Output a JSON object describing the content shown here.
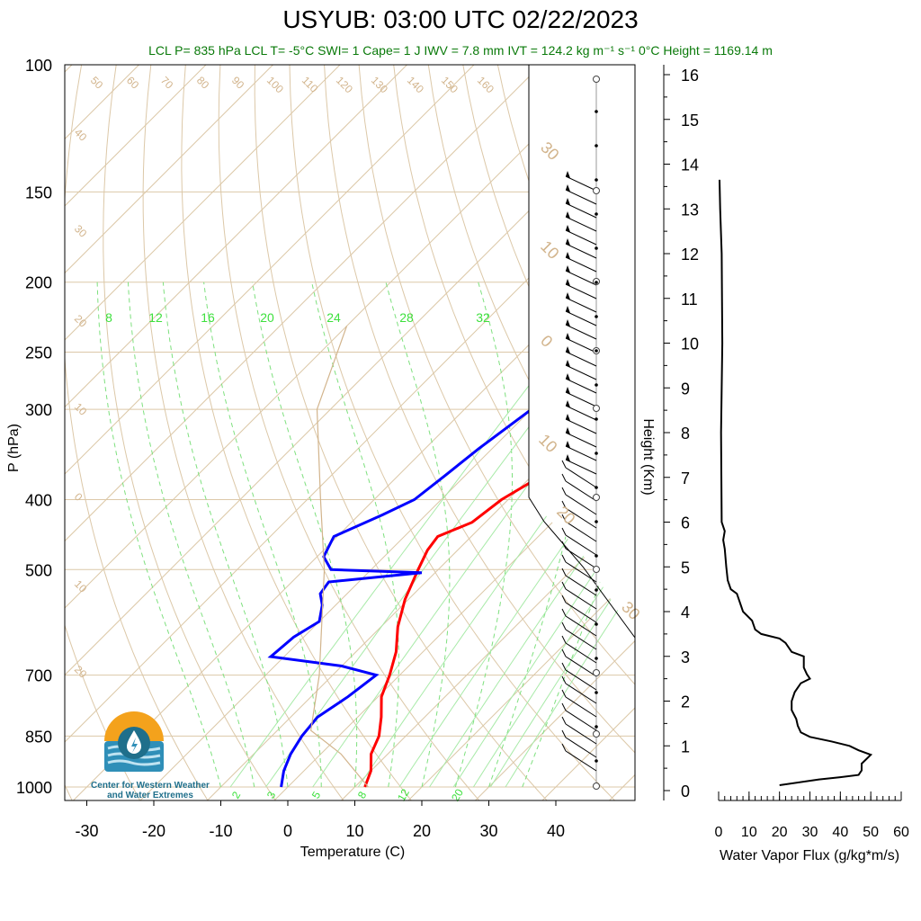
{
  "title": "USYUB: 03:00 UTC 02/22/2023",
  "subtitle": "LCL P= 835 hPa  LCL T= -5°C  SWI= 1  Cape= 1 J  IWV = 7.8 mm  IVT = 124.2 kg m⁻¹ s⁻¹  0°C Height = 1169.14 m",
  "logo": {
    "line1": "Center for Western Weather",
    "line2": "and Water Extremes"
  },
  "chart_data": [
    {
      "type": "line",
      "subtype": "skew-T log-P sounding",
      "xlabel": "Temperature (C)",
      "ylabel": "P (hPa)",
      "xlim": [
        -33,
        52
      ],
      "ylim": [
        1000,
        100
      ],
      "y_scale": "log",
      "x_ticks": [
        "-30",
        "-20",
        "-10",
        "0",
        "10",
        "20",
        "30",
        "40"
      ],
      "y_ticks": [
        "100",
        "150",
        "200",
        "250",
        "300",
        "400",
        "500",
        "700",
        "850",
        "1000"
      ],
      "skew_deg": 45,
      "isotherm_labels": [
        "50",
        "60",
        "70",
        "80",
        "90",
        "100",
        "110",
        "120",
        "130",
        "140",
        "150",
        "160",
        "40",
        "30",
        "20",
        "10",
        "0",
        "10",
        "20",
        "30",
        "10",
        "0",
        "10",
        "20",
        "30"
      ],
      "mixing_ratio_labels": [
        "8",
        "12",
        "16",
        "20",
        "24",
        "28",
        "32"
      ],
      "mixing_ratio_bottom_labels": [
        "2",
        "3",
        "5",
        "8",
        "12",
        "20"
      ],
      "series": [
        {
          "name": "Temperature",
          "color": "#ff0000",
          "points": [
            [
              1000,
              11.5
            ],
            [
              950,
              10.0
            ],
            [
              900,
              7.5
            ],
            [
              850,
              6.0
            ],
            [
              800,
              3.5
            ],
            [
              750,
              0.5
            ],
            [
              700,
              -1.5
            ],
            [
              650,
              -4.0
            ],
            [
              600,
              -7.5
            ],
            [
              550,
              -10.5
            ],
            [
              500,
              -13.0
            ],
            [
              470,
              -14.5
            ],
            [
              450,
              -15.0
            ],
            [
              430,
              -12.0
            ],
            [
              400,
              -11.0
            ],
            [
              370,
              -8.5
            ],
            [
              340,
              -7.5
            ],
            [
              300,
              -7.0
            ],
            [
              270,
              -6.5
            ],
            [
              250,
              -6.0
            ],
            [
              230,
              -5.0
            ],
            [
              210,
              -3.5
            ],
            [
              195,
              -3.5
            ],
            [
              180,
              -2.0
            ],
            [
              165,
              -1.0
            ],
            [
              150,
              -0.5
            ]
          ]
        },
        {
          "name": "Dewpoint",
          "color": "#0000ff",
          "points": [
            [
              1000,
              -1.0
            ],
            [
              950,
              -3.0
            ],
            [
              900,
              -4.5
            ],
            [
              850,
              -5.5
            ],
            [
              800,
              -6.0
            ],
            [
              750,
              -4.5
            ],
            [
              700,
              -3.5
            ],
            [
              680,
              -10.0
            ],
            [
              660,
              -22.0
            ],
            [
              620,
              -21.5
            ],
            [
              590,
              -20.0
            ],
            [
              560,
              -22.0
            ],
            [
              540,
              -24.0
            ],
            [
              520,
              -24.5
            ],
            [
              505,
              -12.0
            ],
            [
              500,
              -26.0
            ],
            [
              480,
              -29.0
            ],
            [
              450,
              -30.5
            ],
            [
              420,
              -26.5
            ],
            [
              400,
              -24.0
            ],
            [
              370,
              -23.0
            ],
            [
              340,
              -22.0
            ],
            [
              300,
              -20.0
            ],
            [
              270,
              -18.0
            ],
            [
              250,
              -16.5
            ],
            [
              230,
              -14.5
            ],
            [
              210,
              -11.5
            ],
            [
              190,
              -10.5
            ],
            [
              170,
              -9.5
            ],
            [
              150,
              -8.5
            ]
          ]
        },
        {
          "name": "Parcel",
          "color": "#d2b48c",
          "points": [
            [
              1000,
              12.0
            ],
            [
              900,
              3.0
            ],
            [
              835,
              -5.0
            ],
            [
              700,
              -12.0
            ],
            [
              500,
              -27.0
            ],
            [
              400,
              -38.0
            ],
            [
              300,
              -52.0
            ],
            [
              230,
              -60.0
            ]
          ]
        }
      ]
    },
    {
      "type": "line",
      "xlabel": "Water Vapor Flux (g/kg*m/s)",
      "ylabel": "Height (Km)",
      "xlim": [
        0,
        60
      ],
      "ylim": [
        0,
        16.3
      ],
      "x_ticks": [
        "0",
        "10",
        "20",
        "30",
        "40",
        "50",
        "60"
      ],
      "y_ticks": [
        "0",
        "1",
        "2",
        "3",
        "4",
        "5",
        "6",
        "7",
        "8",
        "9",
        "10",
        "11",
        "12",
        "13",
        "14",
        "15",
        "16"
      ],
      "series": [
        {
          "name": "Water Vapor Flux",
          "color": "#000000",
          "points": [
            [
              20,
              0.12
            ],
            [
              33,
              0.25
            ],
            [
              40,
              0.3
            ],
            [
              46,
              0.35
            ],
            [
              47,
              0.45
            ],
            [
              47,
              0.6
            ],
            [
              50,
              0.8
            ],
            [
              46,
              0.9
            ],
            [
              43,
              1.0
            ],
            [
              37,
              1.1
            ],
            [
              30,
              1.2
            ],
            [
              27,
              1.3
            ],
            [
              26,
              1.45
            ],
            [
              25.5,
              1.6
            ],
            [
              24,
              1.8
            ],
            [
              24,
              2.0
            ],
            [
              25,
              2.2
            ],
            [
              27,
              2.4
            ],
            [
              30,
              2.5
            ],
            [
              29,
              2.6
            ],
            [
              28,
              2.75
            ],
            [
              28,
              3.0
            ],
            [
              24,
              3.1
            ],
            [
              22,
              3.3
            ],
            [
              20,
              3.4
            ],
            [
              14,
              3.5
            ],
            [
              12,
              3.6
            ],
            [
              11,
              3.8
            ],
            [
              8,
              4.0
            ],
            [
              7,
              4.2
            ],
            [
              6,
              4.4
            ],
            [
              4,
              4.5
            ],
            [
              3,
              4.7
            ],
            [
              2.5,
              5.0
            ],
            [
              2,
              5.4
            ],
            [
              1.5,
              5.6
            ],
            [
              2,
              5.8
            ],
            [
              1,
              6.0
            ],
            [
              0.8,
              8.0
            ],
            [
              1.2,
              10.0
            ],
            [
              1.0,
              12.0
            ],
            [
              0.5,
              13.0
            ],
            [
              0.3,
              13.65
            ]
          ]
        }
      ]
    }
  ]
}
